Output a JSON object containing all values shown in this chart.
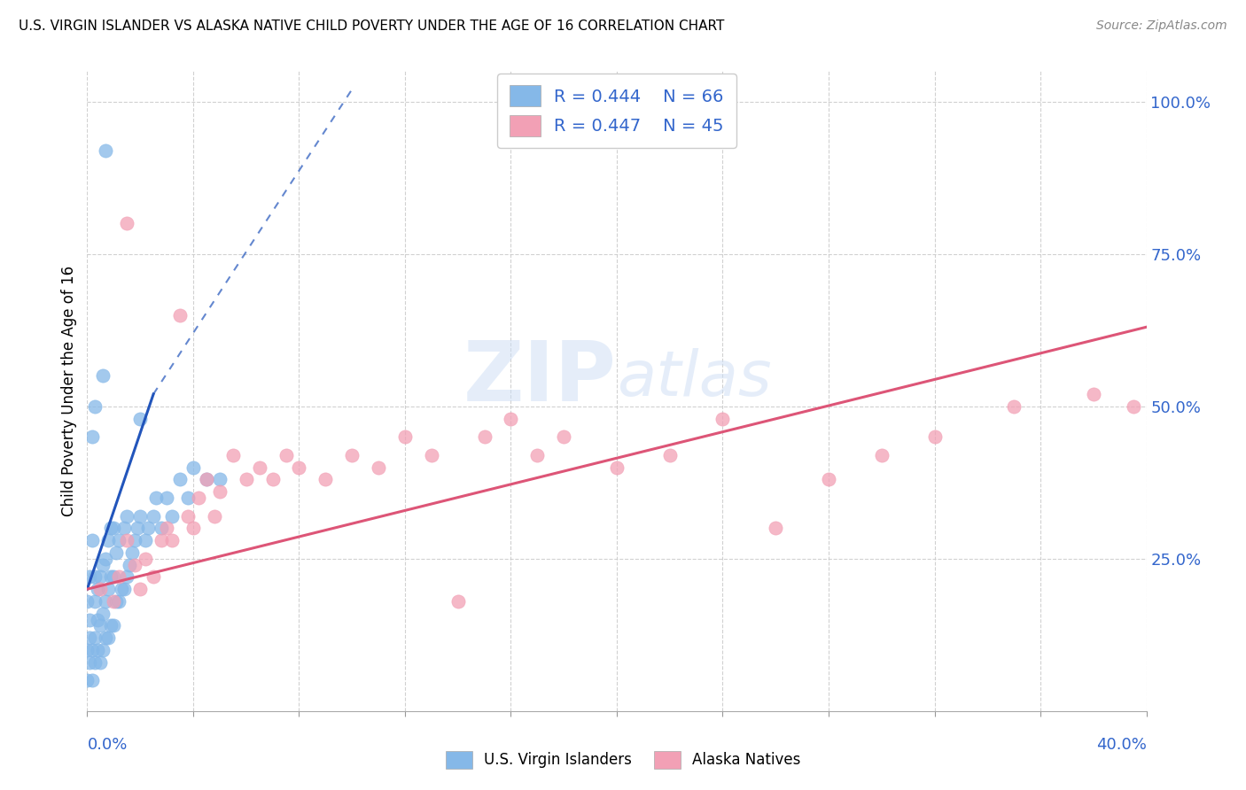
{
  "title": "U.S. VIRGIN ISLANDER VS ALASKA NATIVE CHILD POVERTY UNDER THE AGE OF 16 CORRELATION CHART",
  "source": "Source: ZipAtlas.com",
  "ylabel": "Child Poverty Under the Age of 16",
  "xlim": [
    0.0,
    0.4
  ],
  "ylim": [
    0.0,
    1.05
  ],
  "watermark": "ZIPatlas",
  "legend_label_blue": "U.S. Virgin Islanders",
  "legend_label_pink": "Alaska Natives",
  "blue_color": "#85b8e8",
  "pink_color": "#f2a0b5",
  "blue_line_color": "#2255bb",
  "pink_line_color": "#dd5577",
  "text_color": "#3366cc",
  "grid_color": "#cccccc",
  "blue_x": [
    0.0,
    0.0,
    0.0,
    0.001,
    0.001,
    0.001,
    0.001,
    0.002,
    0.002,
    0.002,
    0.003,
    0.003,
    0.003,
    0.003,
    0.004,
    0.004,
    0.004,
    0.005,
    0.005,
    0.005,
    0.006,
    0.006,
    0.006,
    0.007,
    0.007,
    0.007,
    0.008,
    0.008,
    0.008,
    0.009,
    0.009,
    0.009,
    0.01,
    0.01,
    0.01,
    0.011,
    0.011,
    0.012,
    0.012,
    0.013,
    0.014,
    0.014,
    0.015,
    0.015,
    0.016,
    0.017,
    0.018,
    0.019,
    0.02,
    0.022,
    0.023,
    0.025,
    0.026,
    0.028,
    0.03,
    0.032,
    0.035,
    0.038,
    0.04,
    0.045,
    0.002,
    0.003,
    0.006,
    0.007,
    0.02,
    0.05
  ],
  "blue_y": [
    0.05,
    0.1,
    0.18,
    0.08,
    0.12,
    0.15,
    0.22,
    0.05,
    0.1,
    0.28,
    0.08,
    0.12,
    0.18,
    0.22,
    0.1,
    0.15,
    0.2,
    0.08,
    0.14,
    0.22,
    0.1,
    0.16,
    0.24,
    0.12,
    0.18,
    0.25,
    0.12,
    0.2,
    0.28,
    0.14,
    0.22,
    0.3,
    0.14,
    0.22,
    0.3,
    0.18,
    0.26,
    0.18,
    0.28,
    0.2,
    0.2,
    0.3,
    0.22,
    0.32,
    0.24,
    0.26,
    0.28,
    0.3,
    0.32,
    0.28,
    0.3,
    0.32,
    0.35,
    0.3,
    0.35,
    0.32,
    0.38,
    0.35,
    0.4,
    0.38,
    0.45,
    0.5,
    0.55,
    0.92,
    0.48,
    0.38
  ],
  "pink_x": [
    0.005,
    0.01,
    0.012,
    0.015,
    0.015,
    0.018,
    0.02,
    0.022,
    0.025,
    0.028,
    0.03,
    0.032,
    0.035,
    0.038,
    0.04,
    0.042,
    0.045,
    0.048,
    0.05,
    0.055,
    0.06,
    0.065,
    0.07,
    0.075,
    0.08,
    0.09,
    0.1,
    0.11,
    0.12,
    0.13,
    0.14,
    0.15,
    0.16,
    0.17,
    0.18,
    0.2,
    0.22,
    0.24,
    0.26,
    0.28,
    0.3,
    0.32,
    0.35,
    0.38,
    0.395
  ],
  "pink_y": [
    0.2,
    0.18,
    0.22,
    0.8,
    0.28,
    0.24,
    0.2,
    0.25,
    0.22,
    0.28,
    0.3,
    0.28,
    0.65,
    0.32,
    0.3,
    0.35,
    0.38,
    0.32,
    0.36,
    0.42,
    0.38,
    0.4,
    0.38,
    0.42,
    0.4,
    0.38,
    0.42,
    0.4,
    0.45,
    0.42,
    0.18,
    0.45,
    0.48,
    0.42,
    0.45,
    0.4,
    0.42,
    0.48,
    0.3,
    0.38,
    0.42,
    0.45,
    0.5,
    0.52,
    0.5
  ],
  "blue_trendline_solid": [
    [
      0.0,
      0.2
    ],
    [
      0.025,
      0.52
    ]
  ],
  "blue_trendline_dash": [
    [
      0.025,
      0.52
    ],
    [
      0.1,
      1.02
    ]
  ],
  "pink_trendline": [
    [
      0.0,
      0.2
    ],
    [
      0.4,
      0.63
    ]
  ]
}
